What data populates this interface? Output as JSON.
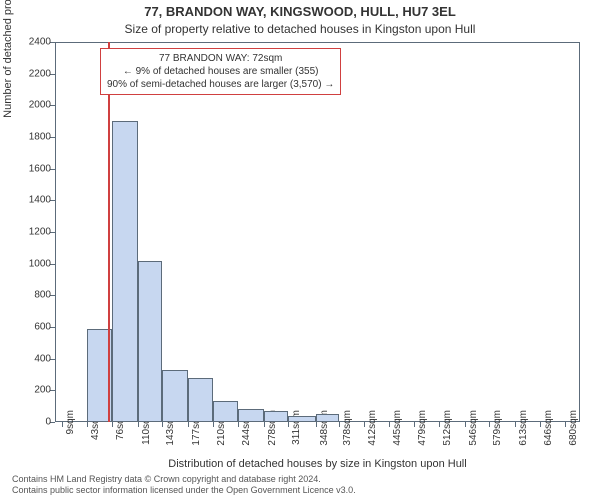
{
  "title": "77, BRANDON WAY, KINGSWOOD, HULL, HU7 3EL",
  "subtitle": "Size of property relative to detached houses in Kingston upon Hull",
  "y_axis_label": "Number of detached properties",
  "x_axis_label": "Distribution of detached houses by size in Kingston upon Hull",
  "footer_line1": "Contains HM Land Registry data © Crown copyright and database right 2024.",
  "footer_line2": "Contains public sector information licensed under the Open Government Licence v3.0.",
  "annotation": {
    "line1": "77 BRANDON WAY: 72sqm",
    "line2": "← 9% of detached houses are smaller (355)",
    "line3": "90% of semi-detached houses are larger (3,570) →"
  },
  "chart": {
    "type": "bar",
    "ylim": [
      0,
      2400
    ],
    "y_ticks": [
      0,
      200,
      400,
      600,
      800,
      1000,
      1200,
      1400,
      1600,
      1800,
      2000,
      2200,
      2400
    ],
    "x_min": 0,
    "x_max": 700,
    "x_ticks": [
      {
        "v": 9,
        "label": "9sqm"
      },
      {
        "v": 43,
        "label": "43sqm"
      },
      {
        "v": 76,
        "label": "76sqm"
      },
      {
        "v": 110,
        "label": "110sqm"
      },
      {
        "v": 143,
        "label": "143sqm"
      },
      {
        "v": 177,
        "label": "177sqm"
      },
      {
        "v": 210,
        "label": "210sqm"
      },
      {
        "v": 244,
        "label": "244sqm"
      },
      {
        "v": 278,
        "label": "278sqm"
      },
      {
        "v": 311,
        "label": "311sqm"
      },
      {
        "v": 348,
        "label": "348sqm"
      },
      {
        "v": 378,
        "label": "378sqm"
      },
      {
        "v": 412,
        "label": "412sqm"
      },
      {
        "v": 445,
        "label": "445sqm"
      },
      {
        "v": 479,
        "label": "479sqm"
      },
      {
        "v": 512,
        "label": "512sqm"
      },
      {
        "v": 546,
        "label": "546sqm"
      },
      {
        "v": 579,
        "label": "579sqm"
      },
      {
        "v": 613,
        "label": "613sqm"
      },
      {
        "v": 646,
        "label": "646sqm"
      },
      {
        "v": 680,
        "label": "680sqm"
      }
    ],
    "bars": [
      {
        "x0": 43,
        "x1": 76,
        "value": 590
      },
      {
        "x0": 76,
        "x1": 110,
        "value": 1900
      },
      {
        "x0": 110,
        "x1": 143,
        "value": 1020
      },
      {
        "x0": 143,
        "x1": 177,
        "value": 330
      },
      {
        "x0": 177,
        "x1": 210,
        "value": 280
      },
      {
        "x0": 210,
        "x1": 244,
        "value": 130
      },
      {
        "x0": 244,
        "x1": 278,
        "value": 80
      },
      {
        "x0": 278,
        "x1": 311,
        "value": 70
      },
      {
        "x0": 311,
        "x1": 348,
        "value": 40
      },
      {
        "x0": 348,
        "x1": 378,
        "value": 50
      },
      {
        "x0": 378,
        "x1": 700,
        "value": 0
      }
    ],
    "marker_x": 72,
    "bar_fill": "#c7d7f0",
    "bar_border": "#5c6b7a",
    "marker_color": "#d04040",
    "background_color": "#ffffff",
    "axis_color": "#5c6b7a",
    "title_fontsize": 13,
    "subtitle_fontsize": 12,
    "label_fontsize": 11,
    "tick_fontsize": 10,
    "footer_fontsize": 9
  }
}
